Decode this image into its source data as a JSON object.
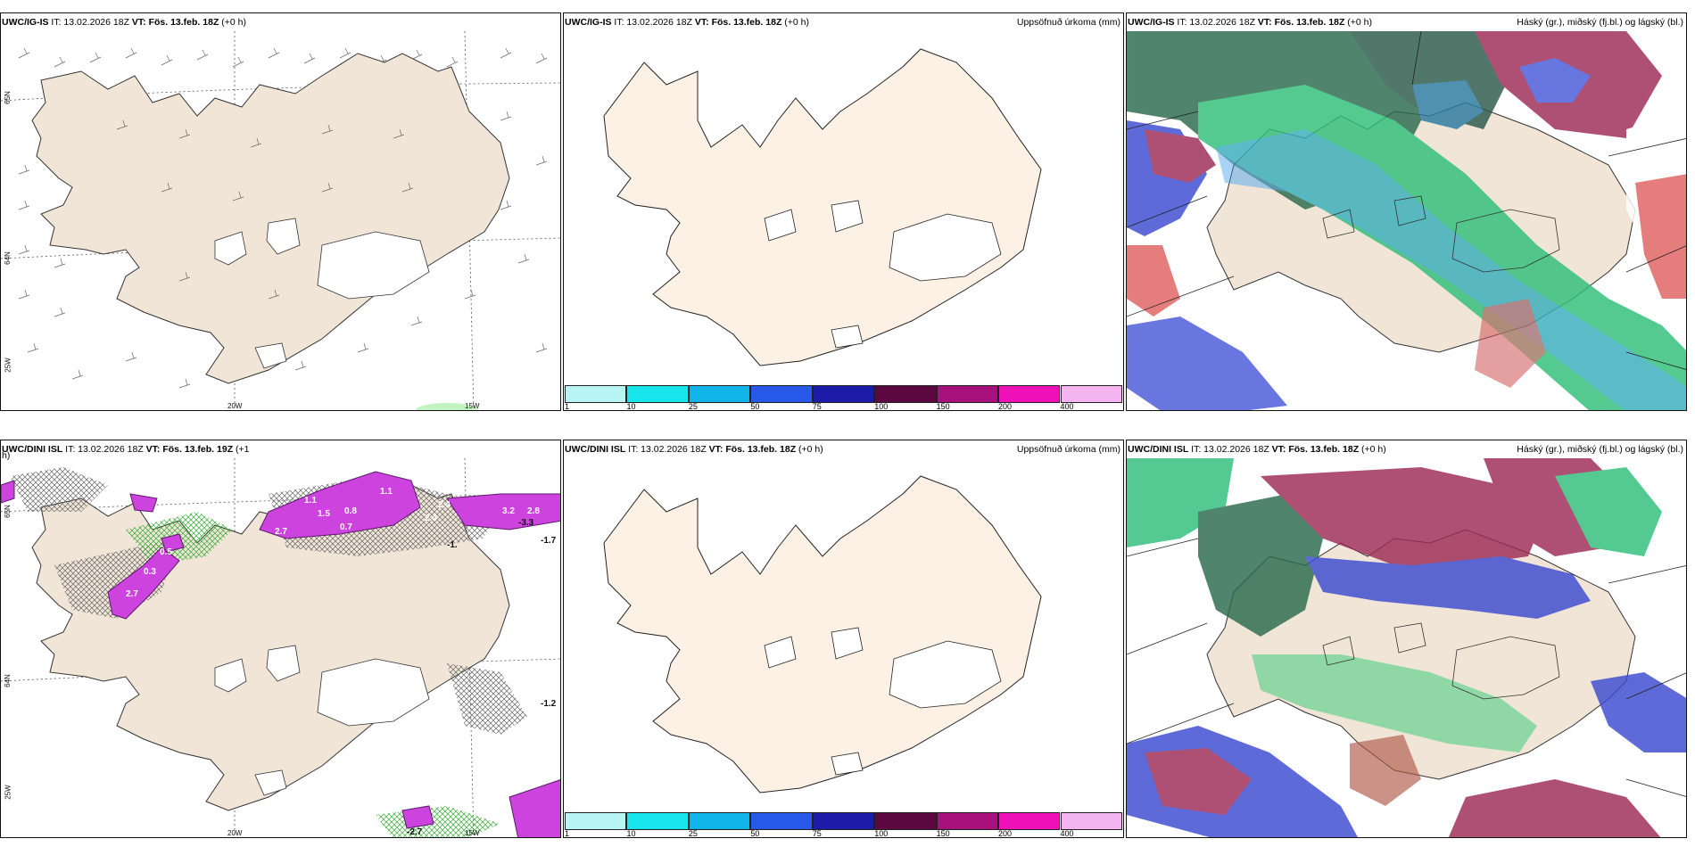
{
  "colors": {
    "land": "#f1e5d8",
    "land_plain": "#fdf0e4",
    "glacier": "#ffffff",
    "precip_purple": "#cc44dd",
    "cloud_high": "#9c2a55",
    "cloud_mid": "#2aa86a",
    "cloud_low": "#3a4ad0"
  },
  "panels": [
    {
      "model": "UWC/IG-IS",
      "it": "IT: 13.02.2026 18Z",
      "vt": "VT: Fös. 13.feb. 18Z",
      "offset": "(+0 h)",
      "right": ""
    },
    {
      "model": "UWC/IG-IS",
      "it": "IT: 13.02.2026 18Z",
      "vt": "VT: Fös. 13.feb. 18Z",
      "offset": "(+0 h)",
      "right": "Uppsöfnuð úrkoma (mm)"
    },
    {
      "model": "UWC/IG-IS",
      "it": "IT: 13.02.2026 18Z",
      "vt": "VT: Fös. 13.feb. 18Z",
      "offset": "(+0 h)",
      "right": "Háský (gr.), miðský (fj.bl.) og lágský (bl.)"
    },
    {
      "model": "UWC/DINI ISL",
      "it": "IT: 13.02.2026 18Z",
      "vt": "VT: Fös. 13.feb. 19Z",
      "offset": "(+1",
      "right": ""
    },
    {
      "model": "UWC/DINI ISL",
      "it": "IT: 13.02.2026 18Z",
      "vt": "VT: Fös. 13.feb. 18Z",
      "offset": "(+0 h)",
      "right": "Uppsöfnuð úrkoma (mm)"
    },
    {
      "model": "UWC/DINI ISL",
      "it": "IT: 13.02.2026 18Z",
      "vt": "VT: Fös. 13.feb. 18Z",
      "offset": "(+0 h)",
      "right": "Háský (gr.), miðský (fj.bl.) og lágský (bl.)"
    }
  ],
  "offset_wrap": "h)",
  "grid_labels": {
    "lon_20": "20W",
    "lon_15": "15W",
    "lat_65": "65N",
    "lat_64": "64N",
    "lon_25": "25W"
  },
  "colorbar": {
    "ticks": [
      "1",
      "10",
      "25",
      "50",
      "75",
      "100",
      "150",
      "200",
      "400"
    ],
    "colors": [
      "#b8f4f4",
      "#18e4ec",
      "#10b4e8",
      "#2858e8",
      "#1c1ca8",
      "#5c0840",
      "#a8107c",
      "#f010b8",
      "#f4b4f0"
    ]
  },
  "precip_labels": [
    "2.7",
    "2.4",
    "1.1",
    "1.5",
    "0.8",
    "2.7",
    "1.1",
    "0.7",
    "0.3",
    "0.5",
    "2.4",
    "3.2",
    "2.8",
    "-3.3",
    "-1.7",
    "-1.",
    "-1.2",
    "-2.7"
  ]
}
